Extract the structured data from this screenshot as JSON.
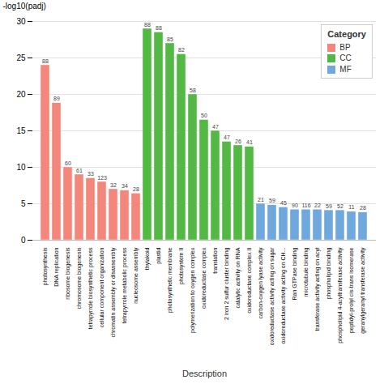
{
  "chart_data": {
    "type": "bar",
    "xlabel": "Description",
    "ylabel": "-log10(padj)",
    "categories": [
      "photosynthesis",
      "DNA replication",
      "ribosome biogenesis",
      "chromosome biogenesis",
      "tetrapyrrole biosynthetic process",
      "cellular component organization",
      "chromatin assembly or disassembly",
      "tetrapyrrole metabolic process",
      "nucleosome assembly",
      "thylakoid",
      "plastid",
      "photosynthetic membrane",
      "photosystem II",
      "polymerization to oxygen complex",
      "oxidoreductase complex",
      "translation",
      "2 iron 2 sulfur cluster binding",
      "catalytic activity on RNA",
      "oxidoreductase complex II",
      "carbon-oxygen lyase activity",
      "oxidoreductase activity acting on sugar",
      "oxidoreductase activity acting on CH...",
      "Ran GTPase binding",
      "microtubule binding",
      "transferase activity acting on acyl",
      "phospholipid binding",
      "phospholipid 4-acyltransferase activity",
      "peptidyl-prolyl cis-trans isomerase",
      "geranylgeranyl transferase activity"
    ],
    "series": [
      {
        "name": "BP",
        "color": "#F4877C",
        "values": [
          24.0,
          18.8,
          10.0,
          9.0,
          8.5,
          8.0,
          7.0,
          6.8,
          6.4,
          null,
          null,
          null,
          null,
          null,
          null,
          null,
          null,
          null,
          null,
          null,
          null,
          null,
          null,
          null,
          null,
          null,
          null,
          null,
          null
        ]
      },
      {
        "name": "CC",
        "color": "#53B944",
        "values": [
          null,
          null,
          null,
          null,
          null,
          null,
          null,
          null,
          null,
          29.0,
          28.5,
          27.0,
          25.5,
          20.0,
          16.5,
          15.0,
          13.5,
          13.0,
          12.8,
          null,
          null,
          null,
          null,
          null,
          null,
          null,
          null,
          null,
          null
        ]
      },
      {
        "name": "MF",
        "color": "#6FA8DC",
        "values": [
          null,
          null,
          null,
          null,
          null,
          null,
          null,
          null,
          null,
          null,
          null,
          null,
          null,
          null,
          null,
          null,
          null,
          null,
          null,
          5.0,
          4.8,
          4.5,
          4.2,
          4.2,
          4.2,
          4.1,
          4.1,
          3.9,
          3.8
        ]
      }
    ],
    "counts": [
      88,
      89,
      60,
      61,
      33,
      123,
      32,
      34,
      28,
      88,
      88,
      85,
      82,
      58,
      50,
      47,
      47,
      26,
      41,
      21,
      59,
      45,
      90,
      116,
      22,
      59,
      52,
      11,
      28
    ],
    "legend": "upper right",
    "legend_title": "Category",
    "ylim": [
      0,
      30
    ],
    "yticks": [
      0,
      5,
      10,
      15,
      20,
      25,
      30
    ],
    "grid": true
  }
}
